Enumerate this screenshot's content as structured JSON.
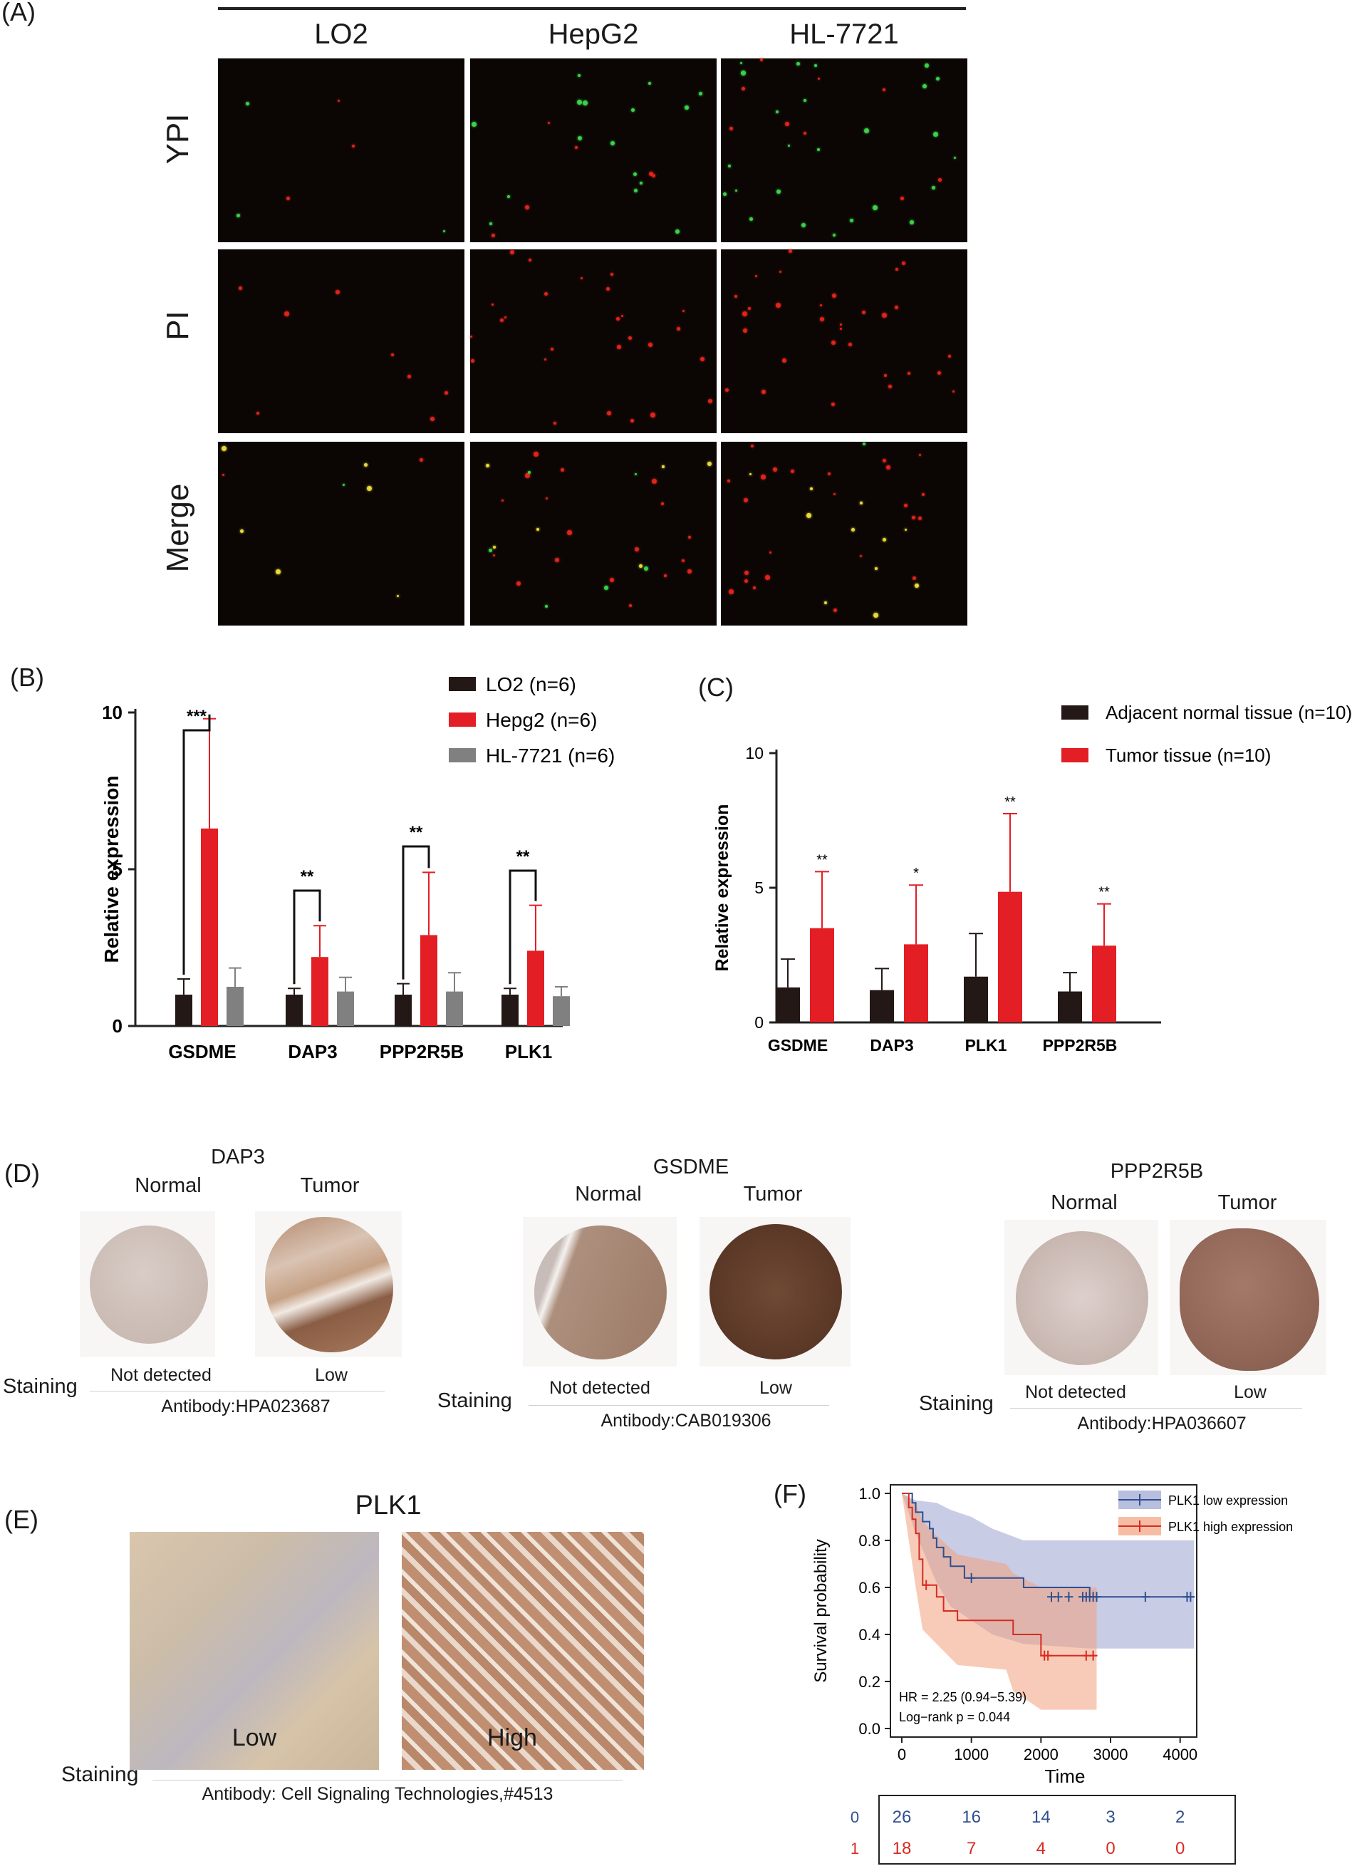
{
  "panel_labels": {
    "a": "(A)",
    "b": "(B)",
    "c": "(C)",
    "d": "(D)",
    "e": "(E)",
    "f": "(F)"
  },
  "panel_a": {
    "columns": [
      "LO2",
      "HepG2",
      "HL-7721"
    ],
    "rows": [
      "YPI",
      "PI",
      "Merge"
    ],
    "colors": {
      "background": "#0b0603",
      "red_dot": "#e0241b",
      "green_dot": "#3bd14a",
      "yellow_dot": "#e8d83a"
    }
  },
  "panel_d": {
    "staining_label": "Staining",
    "groups": [
      {
        "title": "DAP3",
        "normal": "Normal",
        "tumor": "Tumor",
        "normal_level": "Not detected",
        "tumor_level": "Low",
        "antibody": "Antibody:HPA023687"
      },
      {
        "title": "GSDME",
        "normal": "Normal",
        "tumor": "Tumor",
        "normal_level": "Not detected",
        "tumor_level": "Low",
        "antibody": "Antibody:CAB019306"
      },
      {
        "title": "PPP2R5B",
        "normal": "Normal",
        "tumor": "Tumor",
        "normal_level": "Not detected",
        "tumor_level": "Low",
        "antibody": "Antibody:HPA036607"
      }
    ]
  },
  "panel_e": {
    "title": "PLK1",
    "low": "Low",
    "high": "High",
    "staining_label": "Staining",
    "antibody": "Antibody: Cell Signaling Technologies,#4513"
  },
  "chart_data": [
    {
      "id": "B",
      "type": "bar",
      "categories": [
        "GSDME",
        "DAP3",
        "PPP2R5B",
        "PLK1"
      ],
      "ylabel": "Relative expression",
      "ylim": [
        0,
        10
      ],
      "yticks": [
        "0",
        "5",
        "10"
      ],
      "legend_position": "top-right",
      "series": [
        {
          "name": "LO2 (n=6)",
          "color": "#231815",
          "values": [
            1.0,
            1.0,
            1.0,
            1.0
          ],
          "errors": [
            0.5,
            0.2,
            0.35,
            0.2
          ]
        },
        {
          "name": "Hepg2 (n=6)",
          "color": "#e31e24",
          "values": [
            6.3,
            2.2,
            2.9,
            2.4
          ],
          "errors": [
            3.5,
            1.0,
            2.0,
            1.45
          ]
        },
        {
          "name": "HL-7721 (n=6)",
          "color": "#808080",
          "values": [
            1.25,
            1.1,
            1.1,
            0.95
          ],
          "errors": [
            0.6,
            0.45,
            0.6,
            0.3
          ]
        }
      ],
      "significance": [
        {
          "category": "GSDME",
          "label": "***"
        },
        {
          "category": "DAP3",
          "label": "**"
        },
        {
          "category": "PPP2R5B",
          "label": "**"
        },
        {
          "category": "PLK1",
          "label": "**"
        }
      ]
    },
    {
      "id": "C",
      "type": "bar",
      "categories": [
        "GSDME",
        "DAP3",
        "PLK1",
        "PPP2R5B"
      ],
      "ylabel": "Relative expression",
      "ylim": [
        0,
        10
      ],
      "yticks": [
        "0",
        "5",
        "10"
      ],
      "legend_position": "top-right",
      "series": [
        {
          "name": "Adjacent normal tissue (n=10)",
          "color": "#231815",
          "values": [
            1.3,
            1.2,
            1.7,
            1.15
          ],
          "errors": [
            1.05,
            0.8,
            1.6,
            0.7
          ]
        },
        {
          "name": "Tumor tissue (n=10)",
          "color": "#e31e24",
          "values": [
            3.5,
            2.9,
            4.85,
            2.85
          ],
          "errors": [
            2.1,
            2.2,
            2.9,
            1.55
          ]
        }
      ],
      "significance": [
        "**",
        "*",
        "**",
        "**"
      ]
    },
    {
      "id": "F",
      "type": "line",
      "xlabel": "Time",
      "ylabel": "Survival probability",
      "xlim": [
        0,
        4300
      ],
      "ylim": [
        0,
        1.05
      ],
      "xticks": [
        "0",
        "1000",
        "2000",
        "3000",
        "4000"
      ],
      "yticks": [
        "0.0",
        "0.2",
        "0.4",
        "0.6",
        "0.8",
        "1.0"
      ],
      "legend_position": "top-right",
      "annotations": [
        "HR = 2.25 (0.94−5.39)",
        "Log−rank p = 0.044"
      ],
      "series": [
        {
          "name": "PLK1 low expression",
          "color": "#2f4f8f",
          "band_color": "#9aa3cf",
          "x": [
            0,
            100,
            150,
            200,
            250,
            300,
            400,
            450,
            500,
            600,
            700,
            900,
            1100,
            1300,
            1450,
            1750,
            2700,
            4200
          ],
          "y": [
            1.0,
            1.0,
            0.96,
            0.92,
            0.92,
            0.88,
            0.85,
            0.81,
            0.77,
            0.73,
            0.69,
            0.64,
            0.64,
            0.64,
            0.64,
            0.6,
            0.56,
            0.56
          ],
          "censored_x": [
            1000,
            2150,
            2250,
            2400,
            2600,
            2650,
            2700,
            2750,
            2800,
            3500,
            4100,
            4150
          ],
          "censored_y": [
            0.64,
            0.56,
            0.56,
            0.56,
            0.56,
            0.56,
            0.56,
            0.56,
            0.56,
            0.56,
            0.56,
            0.56
          ]
        },
        {
          "name": "PLK1 high expression",
          "color": "#d62b22",
          "band_color": "#f2a07d",
          "x": [
            0,
            100,
            150,
            200,
            250,
            300,
            400,
            500,
            600,
            700,
            800,
            1500,
            1600,
            2000,
            2800
          ],
          "y": [
            1.0,
            0.94,
            0.89,
            0.83,
            0.72,
            0.61,
            0.61,
            0.56,
            0.5,
            0.5,
            0.46,
            0.46,
            0.4,
            0.31,
            0.31
          ],
          "censored_x": [
            350,
            2050,
            2100,
            2650,
            2750
          ],
          "censored_y": [
            0.61,
            0.31,
            0.31,
            0.31,
            0.31
          ]
        }
      ],
      "risk_table": {
        "rows": [
          {
            "label": "0",
            "color": "#2f4f8f",
            "values": [
              "26",
              "16",
              "14",
              "3",
              "2"
            ]
          },
          {
            "label": "1",
            "color": "#d62b22",
            "values": [
              "18",
              "7",
              "4",
              "0",
              "0"
            ]
          }
        ],
        "times": [
          0,
          1000,
          2000,
          3000,
          4000
        ]
      }
    }
  ]
}
